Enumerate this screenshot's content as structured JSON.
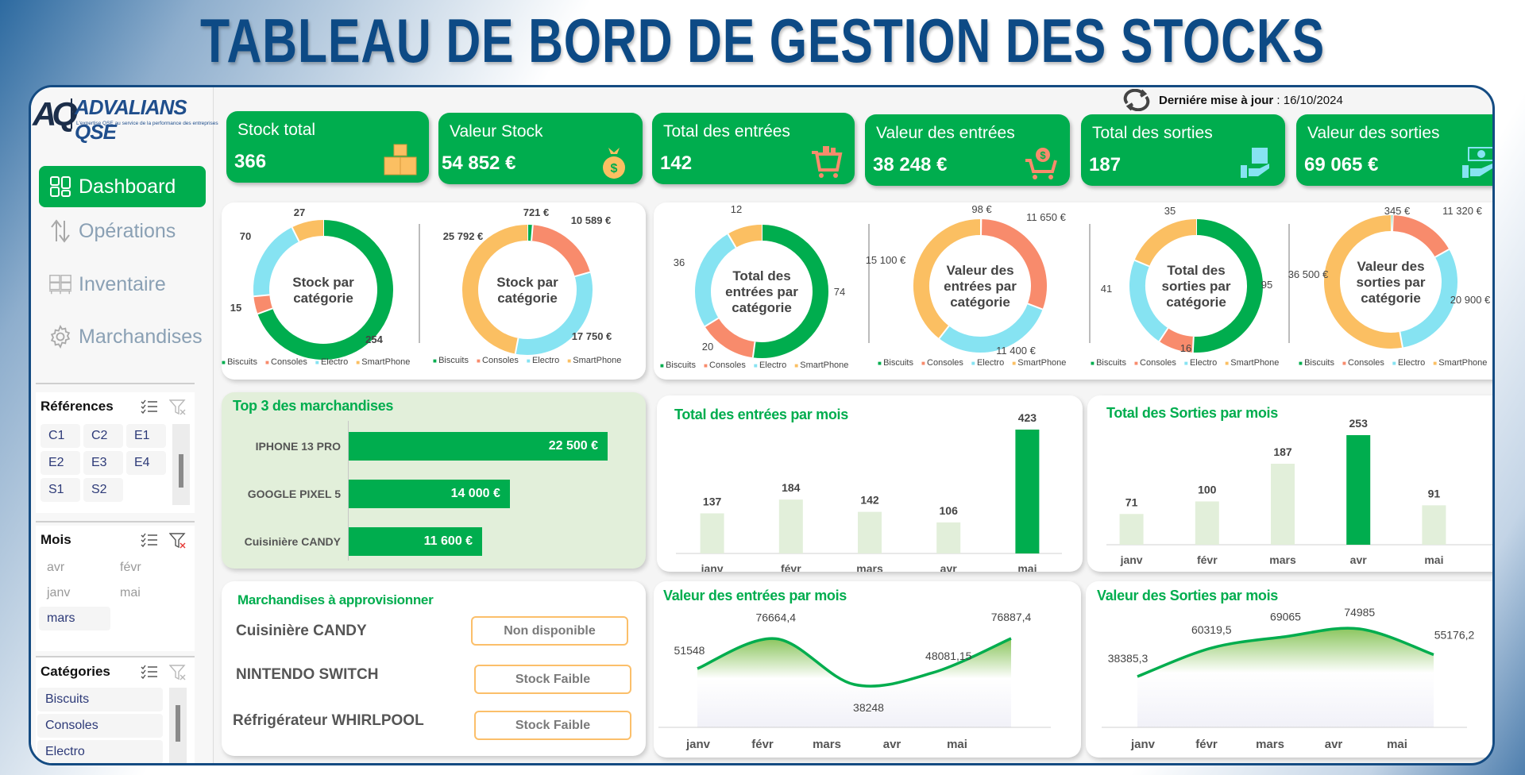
{
  "title": "TABLEAU DE BORD DE GESTION DES STOCKS",
  "logo": {
    "mark": "AQ",
    "name": "ADVALIANS QSE",
    "tagline": "L'expertise QSE au service de la performance des entreprises"
  },
  "update": {
    "label": "Derniére mise à jour",
    "separator": " : ",
    "date": "16/10/2024"
  },
  "nav": [
    {
      "label": "Dashboard",
      "icon": "dashboard-grid-icon",
      "active": true
    },
    {
      "label": "Opérations",
      "icon": "transfer-arrows-icon",
      "active": false
    },
    {
      "label": "Inventaire",
      "icon": "pallet-icon",
      "active": false
    },
    {
      "label": "Marchandises",
      "icon": "gear-icon",
      "active": false
    }
  ],
  "slicers": {
    "references": {
      "title": "Références",
      "items": [
        "C1",
        "C2",
        "E1",
        "E2",
        "E3",
        "E4",
        "S1",
        "S2"
      ]
    },
    "mois": {
      "title": "Mois",
      "items": [
        "avr",
        "févr",
        "janv",
        "mai",
        "mars"
      ],
      "selected": "mars"
    },
    "categories": {
      "title": "Catégories",
      "items": [
        "Biscuits",
        "Consoles",
        "Electro"
      ]
    }
  },
  "kpis": [
    {
      "label": "Stock total",
      "value": "366",
      "icon": "boxes-icon"
    },
    {
      "label": "Valeur Stock",
      "value": "54 852 €",
      "icon": "money-bag-icon"
    },
    {
      "label": "Total des entrées",
      "value": "142",
      "icon": "cart-boxes-icon"
    },
    {
      "label": "Valeur des entrées",
      "value": "38 248 €",
      "icon": "cart-dollar-icon"
    },
    {
      "label": "Total des sorties",
      "value": "187",
      "icon": "hand-box-icon"
    },
    {
      "label": "Valeur des sorties",
      "value": "69 065 €",
      "icon": "hand-cash-icon"
    }
  ],
  "colors": {
    "green": "#00ad4e",
    "consoles": "#f88b6c",
    "electro": "#86e3f2",
    "smartphone": "#fbbf62",
    "light_bar": "#e2efda",
    "title_blue": "#0d4a85"
  },
  "legend": [
    "Biscuits",
    "Consoles",
    "Electro",
    "SmartPhone"
  ],
  "top3": {
    "title": "Top 3 des marchandises",
    "items": [
      {
        "name": "IPHONE 13 PRO",
        "value": 22500,
        "label": "22 500 €"
      },
      {
        "name": "GOOGLE PIXEL 5",
        "value": 14000,
        "label": "14 000 €"
      },
      {
        "name": "Cuisinière CANDY",
        "value": 11600,
        "label": "11 600 €"
      }
    ]
  },
  "restock": {
    "title": "Marchandises à approvisionner",
    "items": [
      {
        "name": "Cuisinière CANDY",
        "status": "Non disponible"
      },
      {
        "name": "NINTENDO SWITCH",
        "status": "Stock Faible"
      },
      {
        "name": "Réfrigérateur WHIRLPOOL",
        "status": "Stock Faible"
      }
    ]
  },
  "chart_data": [
    {
      "type": "pie",
      "title": "Stock par catégorie",
      "center": [
        "Stock par",
        "catégorie"
      ],
      "categories": [
        "Biscuits",
        "Consoles",
        "Electro",
        "SmartPhone"
      ],
      "values": [
        254,
        15,
        70,
        27
      ],
      "labels": [
        "254",
        "15",
        "70",
        "27"
      ]
    },
    {
      "type": "pie",
      "title": "Stock par catégorie",
      "center": [
        "Stock par",
        "catégorie"
      ],
      "categories": [
        "Biscuits",
        "Consoles",
        "Electro",
        "SmartPhone"
      ],
      "values": [
        721,
        10589,
        17750,
        25792
      ],
      "labels": [
        "721 €",
        "10 589 €",
        "17 750 €",
        "25 792 €"
      ]
    },
    {
      "type": "pie",
      "title": "Total des entrées par catégorie",
      "center": [
        "Total des",
        "entrées par",
        "catégorie"
      ],
      "categories": [
        "Biscuits",
        "Consoles",
        "Electro",
        "SmartPhone"
      ],
      "values": [
        74,
        20,
        36,
        12
      ],
      "labels": [
        "74",
        "20",
        "36",
        "12"
      ]
    },
    {
      "type": "pie",
      "title": "Valeur des entrées par catégorie",
      "center": [
        "Valeur des",
        "entrées par",
        "catégorie"
      ],
      "categories": [
        "Biscuits",
        "Consoles",
        "Electro",
        "SmartPhone"
      ],
      "values": [
        98,
        11650,
        11400,
        15100
      ],
      "labels": [
        "98 €",
        "11 650 €",
        "11 400 €",
        "15 100 €"
      ]
    },
    {
      "type": "pie",
      "title": "Total des sorties par catégorie",
      "center": [
        "Total des",
        "sorties par",
        "catégorie"
      ],
      "categories": [
        "Biscuits",
        "Consoles",
        "Electro",
        "SmartPhone"
      ],
      "values": [
        95,
        16,
        41,
        35
      ],
      "labels": [
        "95",
        "16",
        "41",
        "35"
      ]
    },
    {
      "type": "pie",
      "title": "Valeur des sorties par catégorie",
      "center": [
        "Valeur des",
        "sorties par",
        "catégorie"
      ],
      "categories": [
        "Biscuits",
        "Consoles",
        "Electro",
        "SmartPhone"
      ],
      "values": [
        345,
        11320,
        20900,
        36500
      ],
      "labels": [
        "345 €",
        "11 320 €",
        "20 900 €",
        "36 500 €"
      ]
    },
    {
      "type": "bar",
      "title": "Total des entrées par mois",
      "categories": [
        "janv",
        "févr",
        "mars",
        "avr",
        "mai"
      ],
      "values": [
        137,
        184,
        142,
        106,
        423
      ],
      "highlight": "mai"
    },
    {
      "type": "bar",
      "title": "Total des Sorties par mois",
      "categories": [
        "janv",
        "févr",
        "mars",
        "avr",
        "mai"
      ],
      "values": [
        71,
        100,
        187,
        253,
        91
      ],
      "highlight": "avr"
    },
    {
      "type": "area",
      "title": "Valeur des entrées par mois",
      "categories": [
        "janv",
        "févr",
        "mars",
        "avr",
        "mai"
      ],
      "values": [
        51548,
        76664.4,
        38248,
        48081.15,
        76887.4
      ],
      "labels": [
        "51548",
        "76664,4",
        "38248",
        "48081,15",
        "76887,4"
      ]
    },
    {
      "type": "area",
      "title": "Valeur des Sorties par mois",
      "categories": [
        "janv",
        "févr",
        "mars",
        "avr",
        "mai"
      ],
      "values": [
        38385.3,
        60319.5,
        69065,
        74985,
        55176.2
      ],
      "labels": [
        "38385,3",
        "60319,5",
        "69065",
        "74985",
        "55176,2"
      ]
    }
  ]
}
